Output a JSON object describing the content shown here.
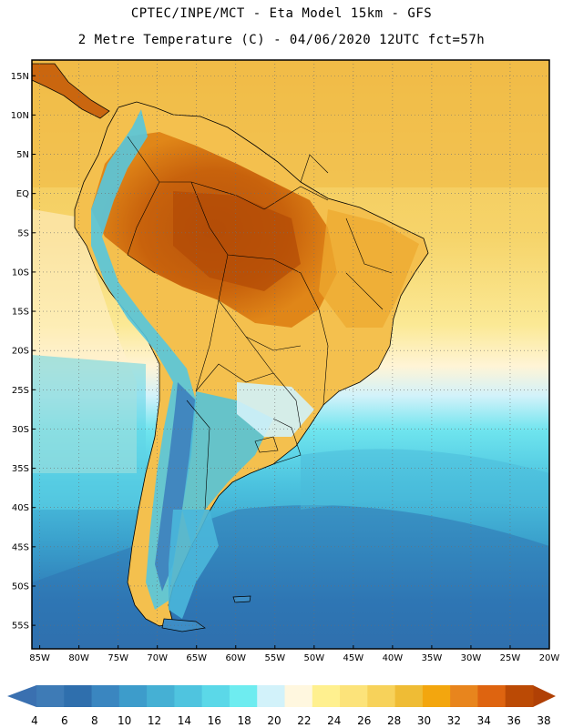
{
  "header": {
    "line1": "CPTEC/INPE/MCT -  Eta Model 15km - GFS",
    "line2": "2 Metre Temperature (C) - 04/06/2020 12UTC fct=57h"
  },
  "map": {
    "lat_labels": [
      "15N",
      "10N",
      "5N",
      "EQ",
      "5S",
      "10S",
      "15S",
      "20S",
      "25S",
      "30S",
      "35S",
      "40S",
      "45S",
      "50S",
      "55S"
    ],
    "lon_labels": [
      "85W",
      "80W",
      "75W",
      "70W",
      "65W",
      "60W",
      "55W",
      "50W",
      "45W",
      "40W",
      "35W",
      "30W",
      "25W",
      "20W"
    ],
    "lat_values": [
      15,
      10,
      5,
      0,
      -5,
      -10,
      -15,
      -20,
      -25,
      -30,
      -35,
      -40,
      -45,
      -50,
      -55
    ],
    "lon_values": [
      -85,
      -80,
      -75,
      -70,
      -65,
      -60,
      -55,
      -50,
      -45,
      -40,
      -35,
      -30,
      -25,
      -20
    ],
    "lon_range": [
      -86,
      -20
    ],
    "lat_range": [
      -58,
      17
    ]
  },
  "colorbar": {
    "labels": [
      "4",
      "6",
      "8",
      "10",
      "12",
      "14",
      "16",
      "18",
      "20",
      "22",
      "24",
      "26",
      "28",
      "30",
      "32",
      "34",
      "36",
      "38"
    ],
    "colors": [
      "#3e7bb6",
      "#2f6fad",
      "#3a86c0",
      "#3d9ccb",
      "#45b0d4",
      "#4fc4df",
      "#5bd8e8",
      "#6eecf0",
      "#d2f2fa",
      "#fff7df",
      "#fff08f",
      "#fce37a",
      "#f7d25a",
      "#efbc35",
      "#f3a60e",
      "#e8851d",
      "#de6410",
      "#bb4a05"
    ],
    "left_arrow_color": "#3a70b0",
    "right_arrow_color": "#b04005"
  }
}
